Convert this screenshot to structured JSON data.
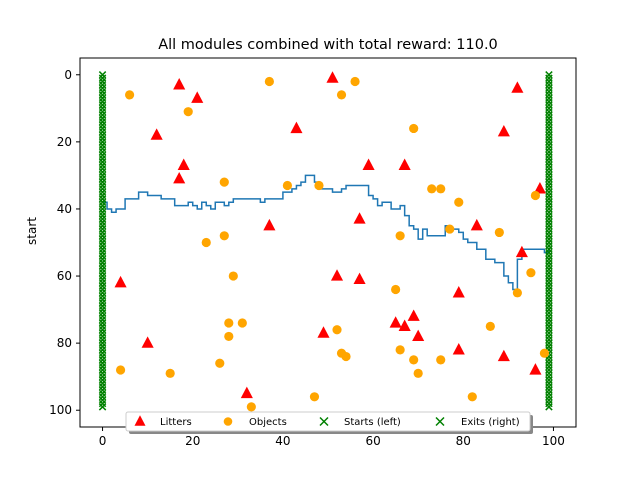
{
  "chart_data": {
    "type": "scatter",
    "title": "All modules combined with total reward: 110.0",
    "xlabel": "",
    "ylabel": "start",
    "xlim": [
      -5,
      105
    ],
    "ylim": [
      105,
      -5
    ],
    "y_inverted": true,
    "xticks": [
      0,
      20,
      40,
      60,
      80,
      100
    ],
    "yticks": [
      0,
      20,
      40,
      60,
      80,
      100
    ],
    "grid": false,
    "legend_position": "bottom-center",
    "colors": {
      "litters": "#ff0000",
      "objects": "#ffa500",
      "starts": "#008000",
      "exits": "#008000",
      "path": "#1f77b4"
    },
    "legend": [
      "Litters",
      "Objects",
      "Starts (left)",
      "Exits (right)"
    ],
    "series": [
      {
        "name": "Litters",
        "marker": "triangle",
        "points": [
          [
            17,
            3
          ],
          [
            21,
            7
          ],
          [
            12,
            18
          ],
          [
            18,
            27
          ],
          [
            17,
            31
          ],
          [
            43,
            16
          ],
          [
            51,
            1
          ],
          [
            59,
            27
          ],
          [
            67,
            27
          ],
          [
            57,
            43
          ],
          [
            37,
            45
          ],
          [
            52,
            60
          ],
          [
            57,
            61
          ],
          [
            89,
            17
          ],
          [
            92,
            4
          ],
          [
            97,
            34
          ],
          [
            83,
            45
          ],
          [
            93,
            53
          ],
          [
            79,
            65
          ],
          [
            4,
            62
          ],
          [
            10,
            80
          ],
          [
            32,
            95
          ],
          [
            49,
            77
          ],
          [
            65,
            74
          ],
          [
            67,
            75
          ],
          [
            69,
            72
          ],
          [
            70,
            78
          ],
          [
            79,
            82
          ],
          [
            89,
            84
          ],
          [
            96,
            88
          ]
        ]
      },
      {
        "name": "Objects",
        "marker": "circle",
        "points": [
          [
            6,
            6
          ],
          [
            19,
            11
          ],
          [
            37,
            2
          ],
          [
            53,
            6
          ],
          [
            56,
            2
          ],
          [
            69,
            16
          ],
          [
            27,
            32
          ],
          [
            41,
            33
          ],
          [
            48,
            33
          ],
          [
            73,
            34
          ],
          [
            75,
            34
          ],
          [
            79,
            38
          ],
          [
            96,
            36
          ],
          [
            27,
            48
          ],
          [
            23,
            50
          ],
          [
            29,
            60
          ],
          [
            66,
            48
          ],
          [
            77,
            46
          ],
          [
            88,
            47
          ],
          [
            95,
            59
          ],
          [
            92,
            65
          ],
          [
            65,
            64
          ],
          [
            28,
            74
          ],
          [
            31,
            74
          ],
          [
            28,
            78
          ],
          [
            26,
            86
          ],
          [
            4,
            88
          ],
          [
            15,
            89
          ],
          [
            33,
            99
          ],
          [
            47,
            96
          ],
          [
            52,
            76
          ],
          [
            53,
            83
          ],
          [
            54,
            84
          ],
          [
            66,
            82
          ],
          [
            69,
            85
          ],
          [
            70,
            89
          ],
          [
            75,
            85
          ],
          [
            82,
            96
          ],
          [
            86,
            75
          ],
          [
            98,
            83
          ]
        ]
      },
      {
        "name": "Starts (left)",
        "marker": "x",
        "x": 0,
        "y_from": 0,
        "y_to": 99
      },
      {
        "name": "Exits (right)",
        "marker": "x",
        "x": 99,
        "y_from": 0,
        "y_to": 99
      },
      {
        "name": "path",
        "marker": "steps",
        "points": [
          [
            0,
            38
          ],
          [
            1,
            40
          ],
          [
            2,
            41
          ],
          [
            3,
            40
          ],
          [
            4,
            40
          ],
          [
            5,
            37
          ],
          [
            7,
            37
          ],
          [
            8,
            35
          ],
          [
            9,
            35
          ],
          [
            10,
            36
          ],
          [
            12,
            36
          ],
          [
            13,
            37
          ],
          [
            15,
            37
          ],
          [
            16,
            39
          ],
          [
            18,
            39
          ],
          [
            19,
            38
          ],
          [
            20,
            39
          ],
          [
            21,
            40
          ],
          [
            22,
            38
          ],
          [
            23,
            39
          ],
          [
            24,
            40
          ],
          [
            25,
            38
          ],
          [
            26,
            38
          ],
          [
            27,
            39
          ],
          [
            28,
            38
          ],
          [
            29,
            37
          ],
          [
            31,
            37
          ],
          [
            32,
            37
          ],
          [
            34,
            37
          ],
          [
            35,
            38
          ],
          [
            36,
            37
          ],
          [
            39,
            37
          ],
          [
            40,
            35
          ],
          [
            42,
            34
          ],
          [
            43,
            33
          ],
          [
            44,
            32
          ],
          [
            45,
            30
          ],
          [
            46,
            30
          ],
          [
            47,
            32
          ],
          [
            48,
            34
          ],
          [
            50,
            34
          ],
          [
            51,
            35
          ],
          [
            52,
            35
          ],
          [
            53,
            34
          ],
          [
            54,
            33
          ],
          [
            57,
            33
          ],
          [
            58,
            33
          ],
          [
            59,
            36
          ],
          [
            60,
            37
          ],
          [
            61,
            39
          ],
          [
            62,
            38
          ],
          [
            63,
            38
          ],
          [
            64,
            40
          ],
          [
            65,
            40
          ],
          [
            66,
            39
          ],
          [
            67,
            42
          ],
          [
            68,
            45
          ],
          [
            69,
            46
          ],
          [
            70,
            49
          ],
          [
            71,
            46
          ],
          [
            72,
            48
          ],
          [
            75,
            48
          ],
          [
            76,
            45
          ],
          [
            77,
            46
          ],
          [
            78,
            46
          ],
          [
            79,
            47
          ],
          [
            80,
            49
          ],
          [
            81,
            50
          ],
          [
            82,
            50
          ],
          [
            83,
            52
          ],
          [
            84,
            52
          ],
          [
            85,
            55
          ],
          [
            86,
            55
          ],
          [
            87,
            56
          ],
          [
            88,
            56
          ],
          [
            89,
            60
          ],
          [
            90,
            62
          ],
          [
            91,
            64
          ],
          [
            92,
            55
          ],
          [
            93,
            52
          ],
          [
            97,
            52
          ],
          [
            98,
            53
          ],
          [
            99,
            52
          ]
        ]
      }
    ]
  }
}
